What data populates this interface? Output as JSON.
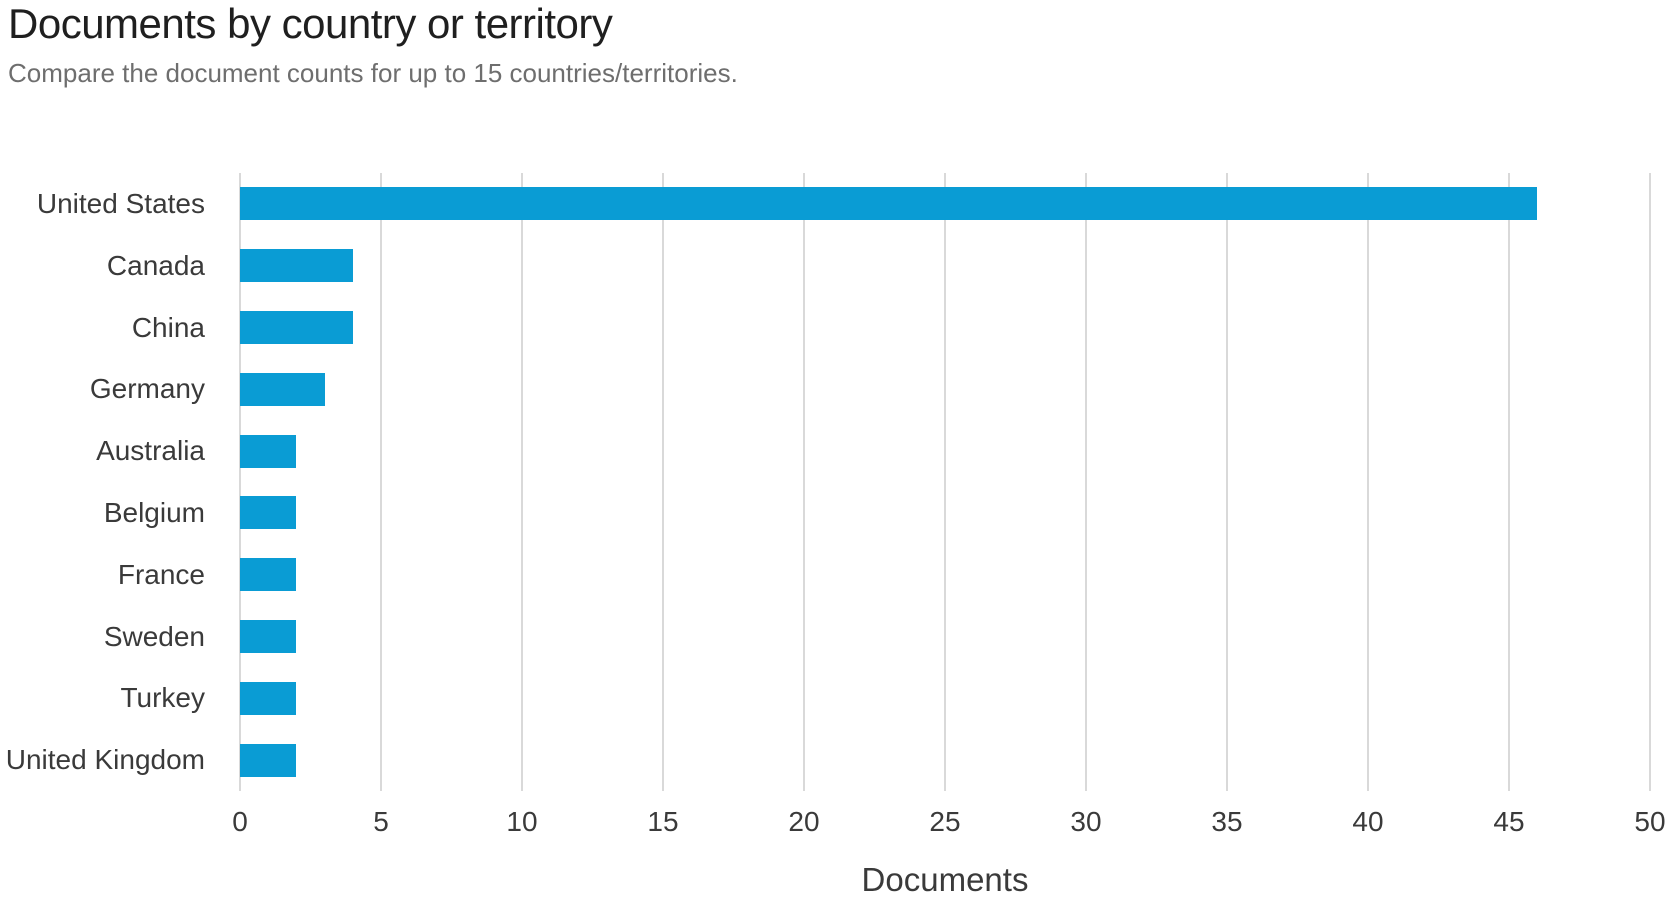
{
  "header": {
    "title": "Documents by country or territory",
    "subtitle": "Compare the document counts for up to 15 countries/territories."
  },
  "chart_data": {
    "type": "bar",
    "orientation": "horizontal",
    "title": "Documents by country or territory",
    "subtitle": "Compare the document counts for up to 15 countries/territories.",
    "categories": [
      "United States",
      "Canada",
      "China",
      "Germany",
      "Australia",
      "Belgium",
      "France",
      "Sweden",
      "Turkey",
      "United Kingdom"
    ],
    "values": [
      46,
      4,
      4,
      3,
      2,
      2,
      2,
      2,
      2,
      2
    ],
    "xlabel": "Documents",
    "ylabel": "",
    "xlim": [
      0,
      50
    ],
    "xticks": [
      0,
      5,
      10,
      15,
      20,
      25,
      30,
      35,
      40,
      45,
      50
    ],
    "grid": "vertical",
    "legend": "none"
  },
  "colors": {
    "bar": "#0A9CD4",
    "gridline": "#D9D9D9",
    "title_text": "#1F1F1F",
    "subtitle_text": "#6E6E6E",
    "axis_text": "#3A3A3A"
  }
}
